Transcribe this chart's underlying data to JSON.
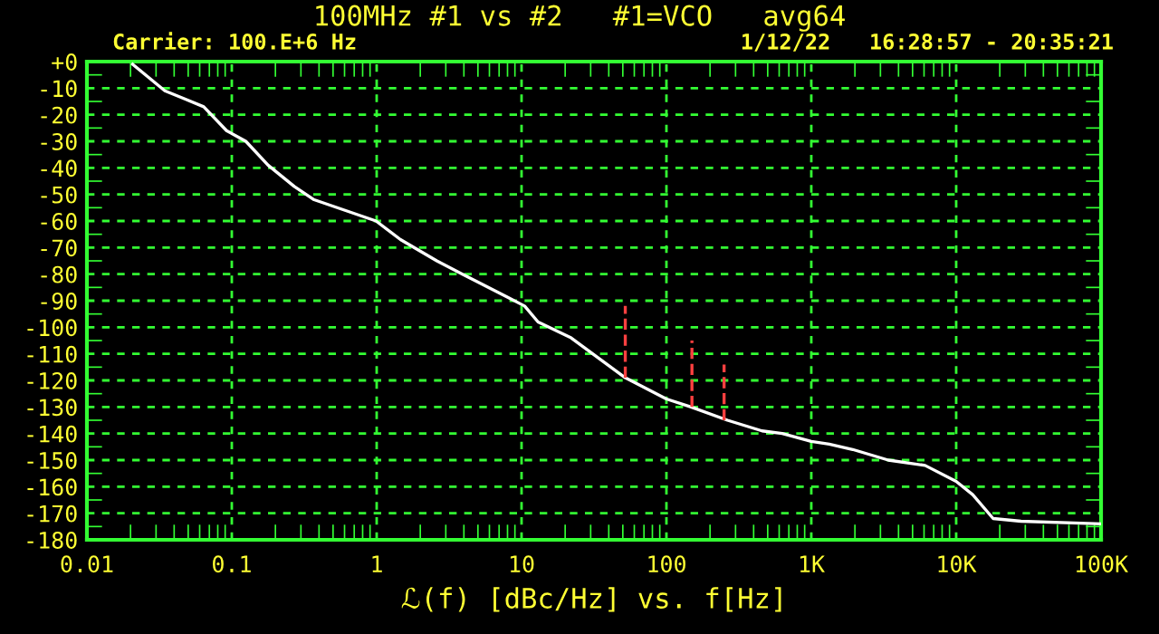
{
  "chart_data": {
    "type": "line",
    "title": "100MHz #1 vs #2   #1=VCO   avg64",
    "annotations": [
      "Carrier: 100.E+6 Hz",
      "1/12/22   16:28:57 - 20:35:21"
    ],
    "xlabel": "ℒ(f) [dBc/Hz] vs. f[Hz]",
    "log": "x",
    "grid": true,
    "line_style": "solid",
    "xlim": [
      0.01,
      100000
    ],
    "ylim": [
      -180,
      0
    ],
    "xticks": [
      0.01,
      0.1,
      1,
      10,
      100,
      {
        "value": 1000,
        "label": "1K"
      },
      {
        "value": 10000,
        "label": "10K"
      },
      {
        "value": 100000,
        "label": "100K"
      }
    ],
    "yticks": [
      {
        "value": 0,
        "label": "+0"
      },
      -10,
      -20,
      -30,
      -40,
      -50,
      -60,
      -70,
      -80,
      -90,
      -100,
      -110,
      -120,
      -130,
      -140,
      -150,
      -160,
      -170,
      -180
    ],
    "series": [
      {
        "color": "#ffffff",
        "x": [
          0.0207,
          0.0345,
          0.047,
          0.064,
          0.092,
          0.125,
          0.178,
          0.27,
          0.37,
          0.99,
          1.46,
          2.6,
          4.6,
          8.2,
          10.5,
          13,
          22,
          52,
          100,
          148,
          264,
          457,
          630,
          1000,
          1330,
          1930,
          3400,
          6100,
          10000,
          13000,
          18000,
          28000,
          98000
        ],
        "values": [
          -1,
          -11,
          -14,
          -17,
          -26,
          -30,
          -39,
          -47,
          -52,
          -60,
          -67,
          -75,
          -82,
          -89,
          -92,
          -98,
          -104,
          -119,
          -127,
          -130,
          -135,
          -139,
          -140,
          -143,
          -144,
          -146,
          -150,
          -152,
          -158,
          -163,
          -172,
          -173,
          -174
        ]
      },
      {
        "color": "#ff4040",
        "line_style": "dashed",
        "x": [
          52,
          52
        ],
        "values": [
          -119,
          -92
        ]
      },
      {
        "color": "#ff4040",
        "line_style": "dashed",
        "x": [
          150,
          150
        ],
        "values": [
          -130,
          -105
        ]
      },
      {
        "color": "#ff4040",
        "line_style": "dashed",
        "x": [
          250,
          250
        ],
        "values": [
          -135,
          -114
        ]
      }
    ]
  }
}
